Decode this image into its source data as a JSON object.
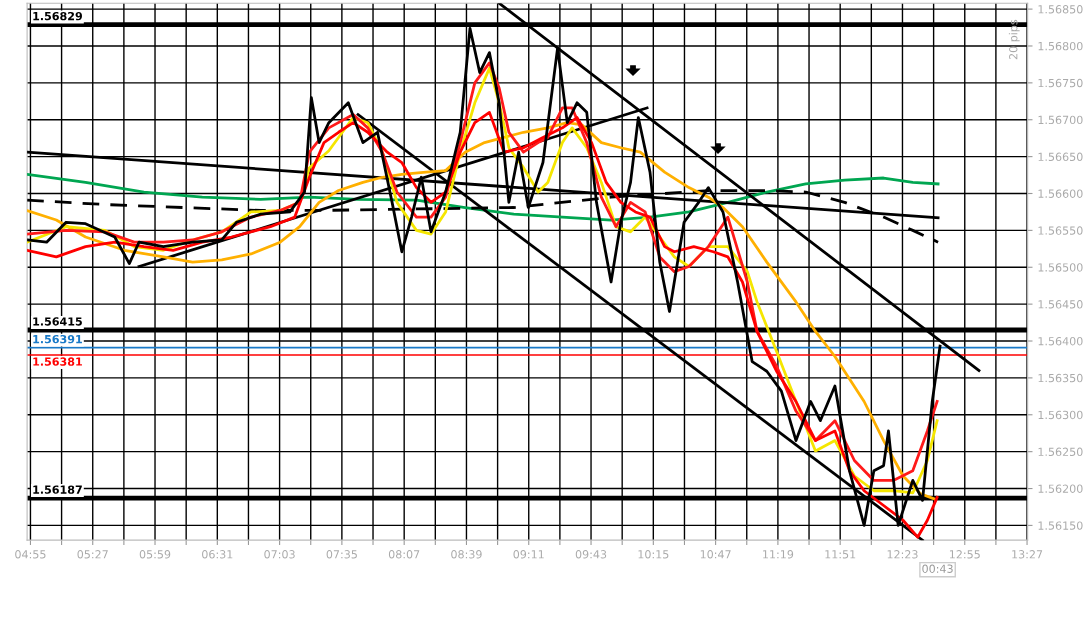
{
  "chart_data": {
    "type": "line",
    "xlim": [
      4.888,
      13.455
    ],
    "ylim": [
      1.5613,
      1.56858
    ],
    "xticks": [
      {
        "value": 4.9167,
        "label": "04:55"
      },
      {
        "value": 5.1833,
        "label": null
      },
      {
        "value": 5.45,
        "label": "05:27"
      },
      {
        "value": 5.7167,
        "label": null
      },
      {
        "value": 5.9833,
        "label": "05:59"
      },
      {
        "value": 6.25,
        "label": null
      },
      {
        "value": 6.5167,
        "label": "06:31"
      },
      {
        "value": 6.7833,
        "label": null
      },
      {
        "value": 7.05,
        "label": "07:03"
      },
      {
        "value": 7.3167,
        "label": null
      },
      {
        "value": 7.5833,
        "label": "07:35"
      },
      {
        "value": 7.85,
        "label": null
      },
      {
        "value": 8.1167,
        "label": "08:07"
      },
      {
        "value": 8.3833,
        "label": null
      },
      {
        "value": 8.65,
        "label": "08:39"
      },
      {
        "value": 8.9167,
        "label": null
      },
      {
        "value": 9.1833,
        "label": "09:11"
      },
      {
        "value": 9.45,
        "label": null
      },
      {
        "value": 9.7167,
        "label": "09:43"
      },
      {
        "value": 9.9833,
        "label": null
      },
      {
        "value": 10.25,
        "label": "10:15"
      },
      {
        "value": 10.5167,
        "label": null
      },
      {
        "value": 10.7833,
        "label": "10:47"
      },
      {
        "value": 11.05,
        "label": null
      },
      {
        "value": 11.3167,
        "label": "11:19"
      },
      {
        "value": 11.5833,
        "label": null
      },
      {
        "value": 11.85,
        "label": "11:51"
      },
      {
        "value": 12.1167,
        "label": null
      },
      {
        "value": 12.3833,
        "label": "12:23"
      },
      {
        "value": 12.65,
        "label": null
      },
      {
        "value": 12.9167,
        "label": "12:55"
      },
      {
        "value": 13.1833,
        "label": null
      },
      {
        "value": 13.45,
        "label": "13:27"
      }
    ],
    "yticks": [
      {
        "value": 1.5615,
        "label": "1.56150"
      },
      {
        "value": 1.562,
        "label": "1.56200"
      },
      {
        "value": 1.5625,
        "label": "1.56250"
      },
      {
        "value": 1.563,
        "label": "1.56300"
      },
      {
        "value": 1.5635,
        "label": "1.56350"
      },
      {
        "value": 1.564,
        "label": "1.56400"
      },
      {
        "value": 1.5645,
        "label": "1.56450"
      },
      {
        "value": 1.565,
        "label": "1.56500"
      },
      {
        "value": 1.5655,
        "label": "1.56550"
      },
      {
        "value": 1.566,
        "label": "1.56600"
      },
      {
        "value": 1.5665,
        "label": "1.56650"
      },
      {
        "value": 1.567,
        "label": "1.56700"
      },
      {
        "value": 1.5675,
        "label": "1.56750"
      },
      {
        "value": 1.568,
        "label": "1.56800"
      },
      {
        "value": 1.5685,
        "label": "1.56850"
      }
    ],
    "grid": true,
    "legend": false,
    "marker": "none",
    "series": [
      {
        "color": "#00a651",
        "x": [
          4.8883,
          5.3883,
          5.8883,
          6.3883,
          6.8883,
          7.305,
          7.7216,
          8.2216,
          8.6383,
          9.055,
          9.4716,
          9.8883,
          10.2216,
          10.555,
          10.8883,
          11.2216,
          11.555,
          11.8883,
          12.2216,
          12.4716,
          12.6883
        ],
        "values": [
          1.56626,
          1.56615,
          1.56602,
          1.56595,
          1.56592,
          1.56595,
          1.56592,
          1.56591,
          1.56581,
          1.56572,
          1.56568,
          1.56564,
          1.56568,
          1.56575,
          1.56588,
          1.56602,
          1.56613,
          1.56618,
          1.56621,
          1.56615,
          1.56613
        ]
      },
      {
        "color": "#000000",
        "line_style": "dashed",
        "x": [
          4.8883,
          5.555,
          6.2216,
          6.8883,
          7.3883,
          8.2216,
          9.055,
          9.8883,
          10.7216,
          11.2216,
          11.555,
          11.8883,
          12.2216,
          12.4716,
          12.6883
        ],
        "values": [
          1.56591,
          1.56585,
          1.56581,
          1.56577,
          1.56577,
          1.56579,
          1.56581,
          1.56595,
          1.56604,
          1.56604,
          1.56602,
          1.56588,
          1.56568,
          1.5655,
          1.56534
        ]
      },
      {
        "color": "#000000",
        "x": [
          4.8883,
          12.6883
        ],
        "values": [
          1.56656,
          1.56567
        ]
      },
      {
        "color": "#000000",
        "x": [
          5.8466,
          10.1966
        ],
        "values": [
          1.56501,
          1.56716
        ]
      },
      {
        "color": "#000000",
        "x": [
          8.93,
          13.0383
        ],
        "values": [
          1.56858,
          1.5636
        ]
      },
      {
        "color": "#000000",
        "x": [
          7.7216,
          12.555
        ],
        "values": [
          1.56707,
          1.5613
        ]
      },
      {
        "color": "#ffb000",
        "x": [
          4.8883,
          5.1383,
          5.3883,
          5.7216,
          6.055,
          6.305,
          6.555,
          6.805,
          7.055,
          7.2216,
          7.3883,
          7.555,
          7.7633,
          7.93,
          8.0966,
          8.305,
          8.4716,
          8.6383,
          8.805,
          8.9716,
          9.1383,
          9.3466,
          9.5133,
          9.6383,
          9.805,
          9.9716,
          10.1383,
          10.3466,
          10.555,
          10.7216,
          10.8466,
          11.0133,
          11.2216,
          11.4716,
          11.6383,
          11.805,
          12.055,
          12.2216,
          12.3883,
          12.5383,
          12.655
        ],
        "values": [
          1.56577,
          1.56564,
          1.56541,
          1.56523,
          1.56514,
          1.56507,
          1.5651,
          1.56518,
          1.56534,
          1.56555,
          1.56588,
          1.56604,
          1.56615,
          1.56622,
          1.56626,
          1.56629,
          1.56631,
          1.56656,
          1.56669,
          1.56676,
          1.56683,
          1.56689,
          1.56696,
          1.56693,
          1.56669,
          1.56662,
          1.56656,
          1.56629,
          1.56608,
          1.56595,
          1.56581,
          1.56555,
          1.56507,
          1.56453,
          1.56413,
          1.56379,
          1.56318,
          1.56265,
          1.56217,
          1.56193,
          1.56186
        ]
      },
      {
        "color": "#f5e600",
        "x": [
          4.8883,
          5.2216,
          5.555,
          5.805,
          6.055,
          6.305,
          6.555,
          6.805,
          7.055,
          7.2216,
          7.305,
          7.4716,
          7.68,
          7.805,
          7.93,
          8.055,
          8.2216,
          8.3466,
          8.4716,
          8.5966,
          8.7216,
          8.8466,
          8.93,
          9.0133,
          9.1383,
          9.2633,
          9.3466,
          9.4716,
          9.555,
          9.68,
          9.805,
          9.93,
          10.055,
          10.18,
          10.305,
          10.43,
          10.555,
          10.7216,
          10.8883,
          11.055,
          11.1383,
          11.305,
          11.4716,
          11.6383,
          11.805,
          11.9716,
          12.1383,
          12.305,
          12.4716,
          12.5966,
          12.68
        ],
        "values": [
          1.56534,
          1.56555,
          1.5655,
          1.56528,
          1.56523,
          1.56537,
          1.56548,
          1.56575,
          1.56577,
          1.56588,
          1.56635,
          1.56658,
          1.56703,
          1.56696,
          1.56656,
          1.56588,
          1.5655,
          1.56545,
          1.56575,
          1.56656,
          1.56723,
          1.5677,
          1.56723,
          1.56662,
          1.56635,
          1.56602,
          1.56615,
          1.56669,
          1.56689,
          1.56662,
          1.56615,
          1.56555,
          1.56548,
          1.56568,
          1.56541,
          1.56514,
          1.56501,
          1.56528,
          1.56528,
          1.56494,
          1.56453,
          1.56386,
          1.56318,
          1.56251,
          1.56265,
          1.56217,
          1.56197,
          1.56197,
          1.56194,
          1.56238,
          1.56292
        ]
      },
      {
        "color": "#ff1a1a",
        "x": [
          4.8883,
          5.2216,
          5.555,
          5.805,
          6.055,
          6.305,
          6.555,
          6.805,
          7.055,
          7.2216,
          7.305,
          7.4716,
          7.68,
          7.805,
          7.93,
          8.055,
          8.2216,
          8.3466,
          8.4716,
          8.5966,
          8.7216,
          8.8466,
          8.93,
          9.0133,
          9.1383,
          9.2633,
          9.3466,
          9.4716,
          9.555,
          9.68,
          9.805,
          9.93,
          10.055,
          10.18,
          10.305,
          10.43,
          10.555,
          10.7216,
          10.8883,
          11.055,
          11.1383,
          11.305,
          11.4716,
          11.6383,
          11.805,
          11.9716,
          12.1383,
          12.305,
          12.4716,
          12.5966,
          12.68
        ],
        "values": [
          1.56545,
          1.5655,
          1.56548,
          1.56534,
          1.56534,
          1.56537,
          1.56548,
          1.56568,
          1.56577,
          1.56588,
          1.56656,
          1.56689,
          1.56707,
          1.56689,
          1.56656,
          1.56602,
          1.56568,
          1.56568,
          1.56595,
          1.56669,
          1.5675,
          1.56777,
          1.56743,
          1.56683,
          1.56656,
          1.56669,
          1.56676,
          1.56716,
          1.56716,
          1.56669,
          1.56595,
          1.56555,
          1.56588,
          1.56575,
          1.56514,
          1.56494,
          1.56501,
          1.56528,
          1.56568,
          1.5648,
          1.56413,
          1.56366,
          1.56305,
          1.56265,
          1.56292,
          1.56238,
          1.56211,
          1.56211,
          1.56224,
          1.56278,
          1.56318
        ]
      },
      {
        "color": "#ff0000",
        "x": [
          4.8883,
          5.1383,
          5.3883,
          5.6383,
          5.8883,
          6.1383,
          6.3883,
          6.6383,
          6.9716,
          7.18,
          7.305,
          7.43,
          7.555,
          7.68,
          7.805,
          7.9716,
          8.0966,
          8.2216,
          8.3466,
          8.4716,
          8.5966,
          8.7216,
          8.8466,
          8.9716,
          9.1383,
          9.305,
          9.4716,
          9.5966,
          9.7216,
          9.8466,
          9.9716,
          10.0966,
          10.2216,
          10.3466,
          10.43,
          10.5966,
          10.7633,
          10.8883,
          11.0133,
          11.1383,
          11.305,
          11.4716,
          11.6383,
          11.805,
          11.93,
          12.055,
          12.2216,
          12.3883,
          12.5133,
          12.5966,
          12.68
        ],
        "values": [
          1.56523,
          1.56514,
          1.56528,
          1.56534,
          1.56528,
          1.56523,
          1.56534,
          1.56541,
          1.56555,
          1.56568,
          1.56622,
          1.56669,
          1.56683,
          1.56696,
          1.56683,
          1.56656,
          1.56642,
          1.56608,
          1.56588,
          1.56602,
          1.56656,
          1.56696,
          1.5671,
          1.56656,
          1.56662,
          1.56676,
          1.56689,
          1.56703,
          1.56669,
          1.56615,
          1.56588,
          1.56575,
          1.56568,
          1.56528,
          1.56521,
          1.56528,
          1.56521,
          1.56514,
          1.5648,
          1.56413,
          1.56359,
          1.56318,
          1.56265,
          1.56278,
          1.56224,
          1.56197,
          1.56177,
          1.56157,
          1.56134,
          1.56157,
          1.56188
        ]
      },
      {
        "color": "#000000",
        "x": [
          4.8883,
          5.055,
          5.2216,
          5.3883,
          5.6383,
          5.7633,
          5.8466,
          6.055,
          6.305,
          6.555,
          6.68,
          6.8883,
          7.1383,
          7.2633,
          7.3216,
          7.3883,
          7.4716,
          7.6383,
          7.7633,
          7.8883,
          8.0133,
          8.0966,
          8.18,
          8.2633,
          8.3466,
          8.4716,
          8.5966,
          8.68,
          8.7633,
          8.8466,
          8.93,
          9.0133,
          9.0966,
          9.18,
          9.305,
          9.43,
          9.5133,
          9.5966,
          9.68,
          9.7633,
          9.8883,
          9.9716,
          10.055,
          10.1216,
          10.2216,
          10.305,
          10.3883,
          10.5133,
          10.6383,
          10.7216,
          10.8466,
          10.9716,
          11.0966,
          11.2216,
          11.3466,
          11.4716,
          11.5966,
          11.68,
          11.805,
          11.93,
          12.055,
          12.1383,
          12.2216,
          12.2633,
          12.3466,
          12.4716,
          12.555,
          12.6383,
          12.705
        ],
        "values": [
          1.56537,
          1.56534,
          1.56561,
          1.56559,
          1.56541,
          1.56505,
          1.56534,
          1.56528,
          1.56534,
          1.56537,
          1.56561,
          1.56572,
          1.56575,
          1.56602,
          1.5673,
          1.56669,
          1.56696,
          1.56723,
          1.56669,
          1.56683,
          1.56588,
          1.56521,
          1.56568,
          1.56622,
          1.56548,
          1.56602,
          1.56683,
          1.56824,
          1.56764,
          1.56791,
          1.56723,
          1.56588,
          1.56656,
          1.56581,
          1.56642,
          1.56797,
          1.56696,
          1.56723,
          1.5671,
          1.56588,
          1.5648,
          1.56561,
          1.56615,
          1.56703,
          1.56629,
          1.56507,
          1.5644,
          1.56561,
          1.56588,
          1.56608,
          1.56575,
          1.5648,
          1.56372,
          1.56359,
          1.56332,
          1.56265,
          1.56318,
          1.56292,
          1.56339,
          1.56224,
          1.5615,
          1.56224,
          1.56231,
          1.56278,
          1.5615,
          1.56211,
          1.56184,
          1.56318,
          1.56393
        ]
      }
    ],
    "ref_lines": [
      {
        "axis": "y",
        "value": 1.56829,
        "label": "1.56829",
        "color": "#000000"
      },
      {
        "axis": "y",
        "value": 1.56415,
        "label": "1.56415",
        "color": "#000000"
      },
      {
        "axis": "y",
        "value": 1.56391,
        "label": "1.56391",
        "color": "#1a7ac8"
      },
      {
        "axis": "y",
        "value": 1.56381,
        "label": "1.56381",
        "color": "#ff0000"
      },
      {
        "axis": "y",
        "value": 1.56187,
        "label": "1.56187",
        "color": "#000000"
      }
    ],
    "annotations": [
      "20 pips",
      "00:43"
    ]
  }
}
